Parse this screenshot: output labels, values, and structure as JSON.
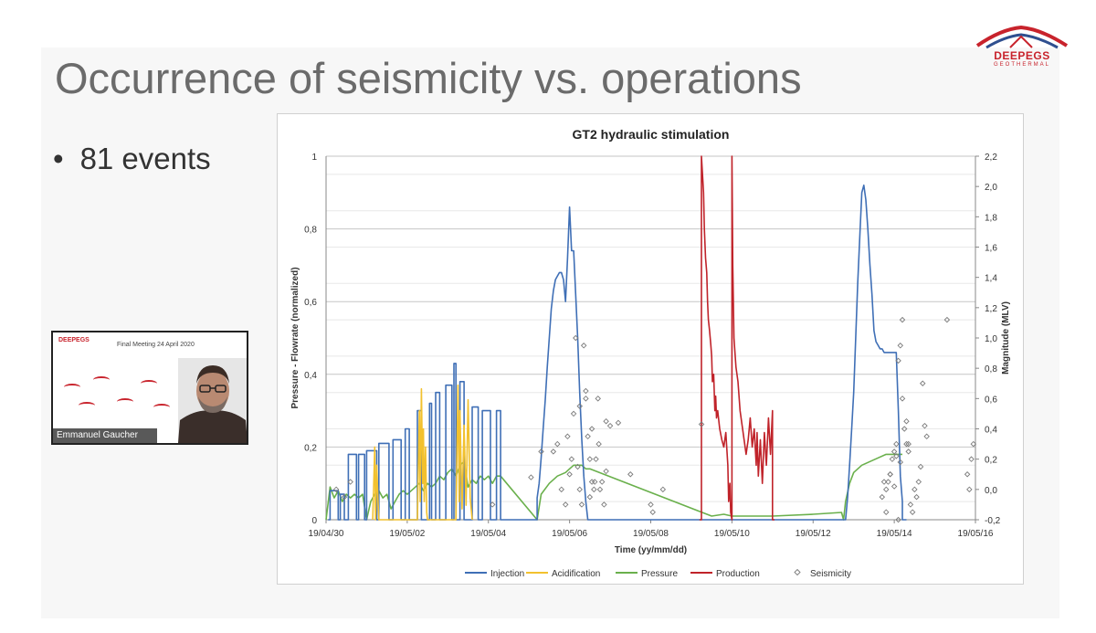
{
  "slide": {
    "title": "Occurrence of seismicity vs. operations",
    "bullet": "81 events",
    "logo": {
      "name": "DEEPEGS",
      "sub": "GEOTHERMAL"
    }
  },
  "video": {
    "header": "Final Meeting 24 April 2020",
    "logo": "DEEPEGS",
    "speaker": "Emmanuel Gaucher"
  },
  "colors": {
    "injection": "#3f6fb6",
    "acidification": "#f2c12e",
    "pressure": "#6ab04c",
    "production": "#c0232a",
    "seismicity": "#7a7a7a",
    "brand": "#c8232c"
  },
  "chart_data": {
    "type": "line",
    "title": "GT2 hydraulic stimulation",
    "xlabel": "Time (yy/mm/dd)",
    "ylabel": "Pressure - Flowrate (normalized)",
    "y2label": "Magnitude (MLV)",
    "xlim": [
      0,
      16
    ],
    "x_ticks": [
      {
        "v": 0,
        "label": "19/04/30"
      },
      {
        "v": 2,
        "label": "19/05/02"
      },
      {
        "v": 4,
        "label": "19/05/04"
      },
      {
        "v": 6,
        "label": "19/05/06"
      },
      {
        "v": 8,
        "label": "19/05/08"
      },
      {
        "v": 10,
        "label": "19/05/10"
      },
      {
        "v": 12,
        "label": "19/05/12"
      },
      {
        "v": 14,
        "label": "19/05/14"
      },
      {
        "v": 16,
        "label": "19/05/16"
      }
    ],
    "ylim": [
      0,
      1
    ],
    "y_ticks": [
      {
        "v": 0,
        "label": "0"
      },
      {
        "v": 0.2,
        "label": "0,2"
      },
      {
        "v": 0.4,
        "label": "0,4"
      },
      {
        "v": 0.6,
        "label": "0,6"
      },
      {
        "v": 0.8,
        "label": "0,8"
      },
      {
        "v": 1,
        "label": "1"
      }
    ],
    "y2lim": [
      -0.2,
      2.2
    ],
    "y2_ticks": [
      {
        "v": -0.2,
        "label": "-0,2"
      },
      {
        "v": 0,
        "label": "0,0"
      },
      {
        "v": 0.2,
        "label": "0,2"
      },
      {
        "v": 0.4,
        "label": "0,4"
      },
      {
        "v": 0.6,
        "label": "0,6"
      },
      {
        "v": 0.8,
        "label": "0,8"
      },
      {
        "v": 1.0,
        "label": "1,0"
      },
      {
        "v": 1.2,
        "label": "1,2"
      },
      {
        "v": 1.4,
        "label": "1,4"
      },
      {
        "v": 1.6,
        "label": "1,6"
      },
      {
        "v": 1.8,
        "label": "1,8"
      },
      {
        "v": 2.0,
        "label": "2,0"
      },
      {
        "v": 2.2,
        "label": "2,2"
      }
    ],
    "grid": true,
    "legend_position": "bottom",
    "series": [
      {
        "name": "Injection",
        "type": "line",
        "axis": "left",
        "x": [
          0.05,
          0.1,
          0.1,
          0.3,
          0.3,
          0.35,
          0.35,
          0.45,
          0.45,
          0.55,
          0.55,
          0.75,
          0.75,
          0.8,
          0.8,
          0.95,
          0.95,
          1.0,
          1.0,
          1.25,
          1.25,
          1.3,
          1.3,
          1.55,
          1.55,
          1.65,
          1.65,
          1.85,
          1.85,
          1.95,
          1.95,
          2.05,
          2.05,
          2.25,
          2.25,
          2.35,
          2.35,
          2.55,
          2.55,
          2.6,
          2.6,
          2.7,
          2.7,
          2.8,
          2.8,
          2.95,
          2.95,
          3.1,
          3.1,
          3.15,
          3.15,
          3.2,
          3.2,
          3.3,
          3.3,
          3.4,
          3.4,
          3.6,
          3.6,
          3.75,
          3.75,
          3.85,
          3.85,
          4.05,
          4.05,
          4.2,
          4.2,
          4.3,
          4.3,
          4.55,
          4.55,
          5.2,
          5.2,
          5.25,
          5.3,
          5.35,
          5.4,
          5.45,
          5.5,
          5.55,
          5.6,
          5.65,
          5.7,
          5.75,
          5.8,
          5.85,
          5.9,
          5.95,
          6.0,
          6.05,
          6.1,
          6.15,
          6.2,
          6.25,
          6.3,
          6.35,
          6.4,
          6.45,
          6.5,
          6.55,
          6.6,
          6.65,
          6.7,
          6.7,
          6.8,
          12.75,
          12.75,
          12.8,
          12.85,
          12.9,
          12.95,
          13.0,
          13.05,
          13.1,
          13.15,
          13.2,
          13.25,
          13.3,
          13.35,
          13.4,
          13.45,
          13.5,
          13.55,
          13.6,
          13.65,
          13.7,
          13.75,
          13.8,
          13.85,
          13.9,
          13.95,
          14.0,
          14.05,
          14.1,
          14.15,
          14.2,
          14.2,
          14.3
        ],
        "y": [
          0,
          0,
          0.08,
          0.08,
          0,
          0,
          0.07,
          0.07,
          0,
          0,
          0.18,
          0.18,
          0,
          0,
          0.18,
          0.18,
          0,
          0,
          0.19,
          0.19,
          0,
          0,
          0.21,
          0.21,
          0,
          0,
          0.22,
          0.22,
          0,
          0,
          0.25,
          0.25,
          0,
          0,
          0.3,
          0.3,
          0,
          0,
          0.32,
          0.32,
          0,
          0,
          0.35,
          0.35,
          0,
          0,
          0.37,
          0.37,
          0,
          0,
          0.43,
          0.43,
          0,
          0,
          0.38,
          0.38,
          0,
          0,
          0.31,
          0.31,
          0,
          0,
          0.3,
          0.3,
          0,
          0,
          0.3,
          0.3,
          0,
          0,
          0,
          0,
          0.06,
          0.1,
          0.17,
          0.25,
          0.33,
          0.42,
          0.5,
          0.58,
          0.63,
          0.66,
          0.67,
          0.68,
          0.68,
          0.66,
          0.6,
          0.72,
          0.86,
          0.74,
          0.74,
          0.62,
          0.5,
          0.35,
          0.22,
          0.12,
          0.05,
          0.0,
          0,
          0,
          0,
          0,
          0,
          0,
          0,
          0,
          0,
          0,
          0.06,
          0.15,
          0.25,
          0.35,
          0.5,
          0.65,
          0.78,
          0.9,
          0.92,
          0.88,
          0.8,
          0.7,
          0.62,
          0.52,
          0.49,
          0.48,
          0.47,
          0.47,
          0.46,
          0.46,
          0.46,
          0.46,
          0.46,
          0.46,
          0.46,
          0.3,
          0.12,
          0.05,
          0,
          0
        ]
      },
      {
        "name": "Acidification",
        "type": "line",
        "axis": "left",
        "x": [
          1.15,
          1.2,
          1.22,
          1.25,
          1.28,
          1.3,
          2.25,
          2.3,
          2.32,
          2.35,
          2.38,
          2.4,
          2.42,
          2.45,
          2.48,
          2.5,
          3.2,
          3.25,
          3.28,
          3.3,
          3.35,
          3.4,
          3.45,
          3.5,
          3.55,
          3.6
        ],
        "y": [
          0,
          0.2,
          0,
          0.15,
          0.05,
          0,
          0,
          0.3,
          0.05,
          0.36,
          0.1,
          0.25,
          0.05,
          0.2,
          0.02,
          0,
          0,
          0.37,
          0.05,
          0.3,
          0.03,
          0.26,
          0.04,
          0.33,
          0.06,
          0
        ]
      },
      {
        "name": "Pressure",
        "type": "line",
        "axis": "left",
        "x": [
          0.0,
          0.1,
          0.2,
          0.3,
          0.4,
          0.5,
          0.6,
          0.7,
          0.8,
          0.9,
          1.0,
          1.1,
          1.2,
          1.3,
          1.4,
          1.5,
          1.6,
          1.7,
          1.8,
          1.9,
          2.0,
          2.1,
          2.2,
          2.3,
          2.4,
          2.5,
          2.6,
          2.7,
          2.8,
          2.9,
          3.0,
          3.1,
          3.2,
          3.3,
          3.4,
          3.5,
          3.6,
          3.7,
          3.8,
          3.9,
          4.0,
          4.1,
          4.2,
          4.3,
          5.2,
          5.3,
          5.5,
          5.7,
          5.9,
          6.0,
          6.1,
          6.2,
          6.3,
          6.4,
          6.5,
          9.5,
          9.8,
          10.0,
          11.0,
          12.0,
          12.7,
          12.75,
          12.8,
          12.9,
          13.0,
          13.2,
          13.4,
          13.6,
          13.8,
          14.0,
          14.1,
          14.2
        ],
        "y": [
          0,
          0.09,
          0.06,
          0.08,
          0.05,
          0.07,
          0.06,
          0.07,
          0.06,
          0.07,
          0,
          0.05,
          0.07,
          0.08,
          0.06,
          0.07,
          0.03,
          0.05,
          0.07,
          0.08,
          0.07,
          0.08,
          0.09,
          0.1,
          0.08,
          0.1,
          0.09,
          0.1,
          0.12,
          0.11,
          0.13,
          0.14,
          0.12,
          0.15,
          0.16,
          0.09,
          0.11,
          0.1,
          0.12,
          0.11,
          0.12,
          0.1,
          0.12,
          0.12,
          0,
          0.07,
          0.1,
          0.12,
          0.13,
          0.14,
          0.15,
          0.15,
          0.15,
          0.14,
          0.14,
          0.01,
          0.015,
          0.01,
          0.01,
          0.015,
          0.02,
          0,
          0.05,
          0.1,
          0.13,
          0.15,
          0.16,
          0.17,
          0.18,
          0.18,
          0.18,
          0.18
        ]
      },
      {
        "name": "Production",
        "type": "line",
        "axis": "left",
        "x": [
          9.2,
          9.25,
          9.25,
          9.3,
          9.32,
          9.35,
          9.38,
          9.4,
          9.42,
          9.45,
          9.48,
          9.5,
          9.52,
          9.55,
          9.58,
          9.6,
          9.62,
          9.65,
          9.7,
          9.75,
          9.8,
          9.85,
          9.9,
          9.92,
          9.95,
          9.97,
          10.0,
          10.0,
          10.02,
          10.05,
          10.1,
          10.15,
          10.2,
          10.25,
          10.3,
          10.35,
          10.4,
          10.45,
          10.5,
          10.55,
          10.6,
          10.62,
          10.65,
          10.7,
          10.75,
          10.8,
          10.85,
          10.9,
          10.95,
          11.0,
          11.0,
          11.05
        ],
        "y": [
          0,
          0,
          1.0,
          0.9,
          0.8,
          0.72,
          0.68,
          0.6,
          0.55,
          0.52,
          0.48,
          0.45,
          0.38,
          0.4,
          0.3,
          0.34,
          0.28,
          0.3,
          0.25,
          0.22,
          0.2,
          0.24,
          0.15,
          0.05,
          0.1,
          0.02,
          0,
          1.0,
          0.7,
          0.5,
          0.42,
          0.38,
          0.3,
          0.26,
          0.22,
          0.18,
          0.22,
          0.28,
          0.2,
          0.25,
          0.15,
          0.24,
          0.12,
          0.22,
          0.1,
          0.24,
          0.15,
          0.28,
          0.18,
          0.3,
          0,
          0
        ]
      },
      {
        "name": "Seismicity",
        "type": "scatter",
        "axis": "right",
        "x": [
          0.25,
          0.45,
          0.6,
          4.1,
          5.6,
          5.7,
          5.8,
          5.9,
          6.0,
          6.05,
          6.1,
          6.15,
          6.2,
          6.25,
          6.3,
          6.35,
          6.4,
          6.45,
          6.5,
          6.55,
          6.6,
          6.62,
          6.65,
          6.7,
          6.72,
          6.75,
          6.8,
          6.85,
          6.9,
          7.0,
          7.2,
          7.5,
          8.0,
          8.05,
          8.3,
          9.25,
          13.8,
          13.85,
          13.9,
          13.95,
          14.0,
          14.05,
          14.1,
          14.15,
          14.2,
          14.25,
          14.3,
          14.35,
          14.4,
          14.45,
          14.5,
          14.55,
          14.6,
          14.65,
          14.7,
          14.75,
          14.8,
          15.3,
          15.8,
          15.85,
          15.9,
          15.95,
          5.05,
          5.3,
          5.95,
          6.25,
          6.9,
          13.7,
          13.75,
          13.8,
          14.0,
          14.15,
          14.3,
          14.1,
          14.2,
          6.55,
          6.4,
          14.05,
          14.35,
          13.9,
          6.5
        ],
        "y": [
          0.0,
          -0.05,
          0.05,
          -0.1,
          0.25,
          0.3,
          0.0,
          -0.1,
          0.1,
          0.2,
          0.5,
          1.0,
          0.15,
          0.0,
          -0.1,
          0.95,
          0.6,
          0.35,
          0.2,
          0.4,
          0.0,
          0.05,
          0.2,
          0.6,
          0.3,
          0.0,
          0.05,
          -0.1,
          0.45,
          0.42,
          0.44,
          0.1,
          -0.1,
          -0.15,
          0.0,
          0.43,
          0.0,
          0.05,
          0.1,
          0.2,
          0.25,
          0.3,
          0.85,
          0.95,
          1.12,
          0.4,
          0.3,
          0.25,
          -0.1,
          -0.15,
          0.0,
          -0.05,
          0.05,
          0.15,
          0.7,
          0.42,
          0.35,
          1.12,
          0.1,
          0.0,
          0.2,
          0.3,
          0.08,
          0.25,
          0.35,
          0.55,
          0.12,
          -0.05,
          0.05,
          -0.15,
          0.02,
          0.18,
          0.45,
          -0.2,
          0.6,
          0.05,
          0.65,
          0.22,
          0.3,
          0.1,
          -0.05
        ]
      }
    ]
  },
  "legend": [
    "Injection",
    "Acidification",
    "Pressure",
    "Production",
    "Seismicity"
  ]
}
